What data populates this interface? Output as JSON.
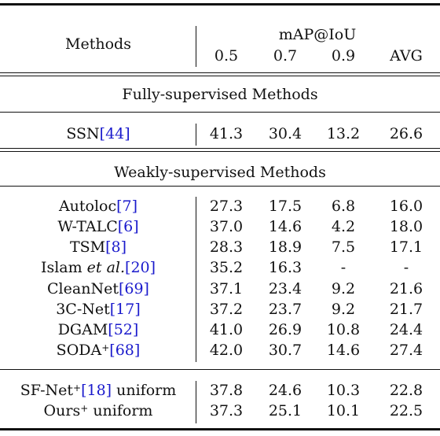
{
  "header": {
    "methods": "Methods",
    "metric": "mAP@IoU",
    "cols": [
      "0.5",
      "0.7",
      "0.9",
      "AVG"
    ]
  },
  "sections": {
    "fully": "Fully-supervised Methods",
    "weakly": "Weakly-supervised Methods"
  },
  "rows": {
    "ssn": {
      "name": "SSN",
      "cite": "[44]",
      "values": [
        "41.3",
        "30.4",
        "13.2",
        "26.6"
      ]
    },
    "autoloc": {
      "name": "Autoloc",
      "cite": "[7]",
      "values": [
        "27.3",
        "17.5",
        "6.8",
        "16.0"
      ]
    },
    "wtalc": {
      "name": "W-TALC",
      "cite": "[6]",
      "values": [
        "37.0",
        "14.6",
        "4.2",
        "18.0"
      ]
    },
    "tsm": {
      "name": "TSM",
      "cite": "[8]",
      "values": [
        "28.3",
        "18.9",
        "7.5",
        "17.1"
      ]
    },
    "islam": {
      "name": "Islam ",
      "name_ital": "et al.",
      "cite": "[20]",
      "values": [
        "35.2",
        "16.3",
        "-",
        "-"
      ]
    },
    "cleannet": {
      "name": "CleanNet",
      "cite": "[69]",
      "values": [
        "37.1",
        "23.4",
        "9.2",
        "21.6"
      ]
    },
    "c3net": {
      "name": "3C-Net",
      "cite": "[17]",
      "values": [
        "37.2",
        "23.7",
        "9.2",
        "21.7"
      ]
    },
    "dgam": {
      "name": "DGAM",
      "cite": "[52]",
      "values": [
        "41.0",
        "26.9",
        "10.8",
        "24.4"
      ]
    },
    "soda": {
      "name": "SODA",
      "sup": "+",
      "cite": "[68]",
      "values": [
        "42.0",
        "30.7",
        "14.6",
        "27.4"
      ]
    },
    "sfnet": {
      "name": "SF-Net",
      "sup": "+",
      "cite": "[18]",
      "suffix": " uniform",
      "values": [
        "37.8",
        "24.6",
        "10.3",
        "22.8"
      ]
    },
    "ours": {
      "name": "Ours",
      "sup": "+",
      "suffix": " uniform",
      "values": [
        "37.3",
        "25.1",
        "10.1",
        "22.5"
      ]
    }
  }
}
